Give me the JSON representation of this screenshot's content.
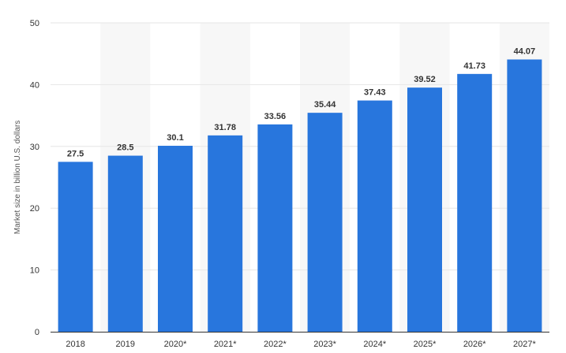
{
  "chart_data": {
    "type": "bar",
    "title": "",
    "xlabel": "",
    "ylabel": "Market size in billion U.S. dollars",
    "categories": [
      "2018",
      "2019",
      "2020*",
      "2021*",
      "2022*",
      "2023*",
      "2024*",
      "2025*",
      "2026*",
      "2027*"
    ],
    "values": [
      27.5,
      28.5,
      30.1,
      31.78,
      33.56,
      35.44,
      37.43,
      39.52,
      41.73,
      44.07
    ],
    "value_labels": [
      "27.5",
      "28.5",
      "30.1",
      "31.78",
      "33.56",
      "35.44",
      "37.43",
      "39.52",
      "41.73",
      "44.07"
    ],
    "yticks": [
      "0",
      "10",
      "20",
      "30",
      "40",
      "50"
    ],
    "ylim": [
      0,
      50
    ],
    "grid": true,
    "legend": "none",
    "colors": {
      "bar": "#2876dd",
      "grid": "#e6e6e6",
      "alt_band": "#f7f7f7",
      "axis_line": "#333333"
    }
  }
}
